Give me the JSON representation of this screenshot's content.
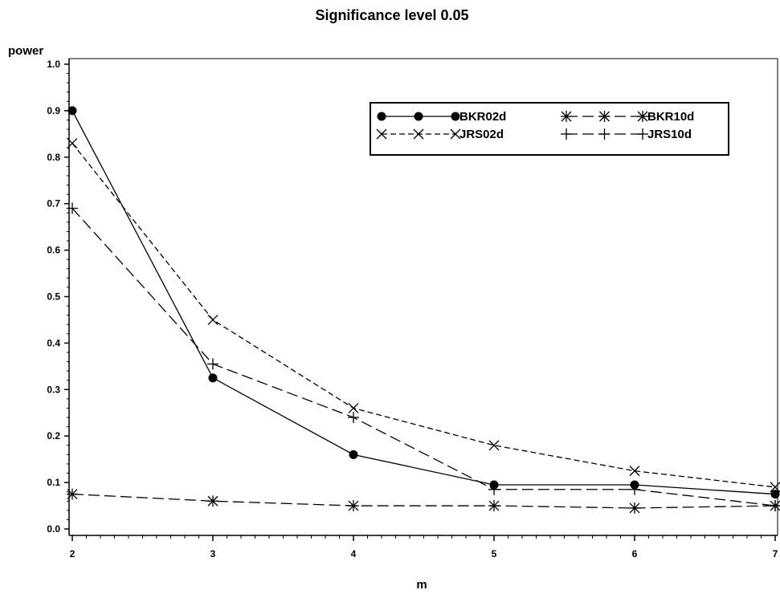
{
  "chart_data": {
    "type": "line",
    "title": "Significance level 0.05",
    "xlabel": "m",
    "ylabel": "power",
    "xlim": [
      2,
      7
    ],
    "ylim": [
      0.0,
      1.0
    ],
    "x": [
      2,
      3,
      4,
      5,
      6,
      7
    ],
    "xticks": [
      "2",
      "3",
      "4",
      "5",
      "6",
      "7"
    ],
    "yticks": [
      "0.0",
      "0.1",
      "0.2",
      "0.3",
      "0.4",
      "0.5",
      "0.6",
      "0.7",
      "0.8",
      "0.9",
      "1.0"
    ],
    "grid": false,
    "legend_position": "top-right",
    "series": [
      {
        "name": "BKR02d",
        "marker": "dot",
        "line": "solid",
        "color": "#000000",
        "values": [
          0.9,
          0.325,
          0.16,
          0.095,
          0.095,
          0.075
        ]
      },
      {
        "name": "BKR10d",
        "marker": "star",
        "line": "long-dash",
        "color": "#000000",
        "values": [
          0.075,
          0.06,
          0.05,
          0.05,
          0.045,
          0.05
        ]
      },
      {
        "name": "JRS02d",
        "marker": "x",
        "line": "dash",
        "color": "#000000",
        "values": [
          0.83,
          0.45,
          0.26,
          0.18,
          0.125,
          0.09
        ]
      },
      {
        "name": "JRS10d",
        "marker": "plus",
        "line": "long-dash",
        "color": "#000000",
        "values": [
          0.69,
          0.355,
          0.24,
          0.085,
          0.085,
          0.05
        ]
      }
    ]
  }
}
